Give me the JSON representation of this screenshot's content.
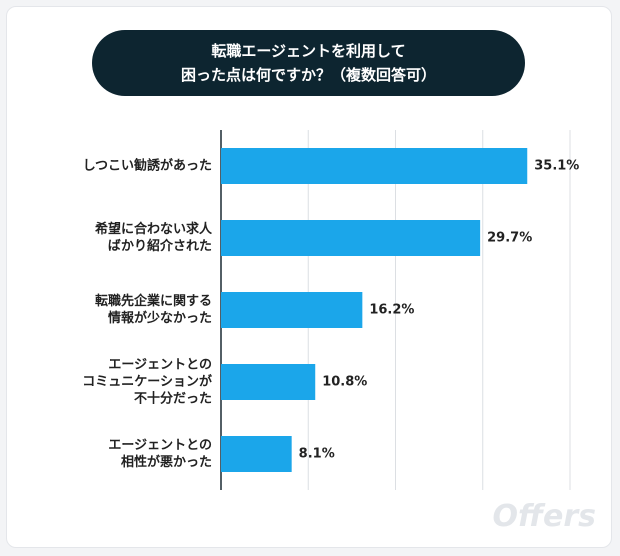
{
  "chart_data": {
    "type": "barh",
    "title": "転職エージェントを利用して\n困った点は何ですか？（複数回答可）",
    "categories": [
      "しつこい勧誘があった",
      "希望に合わない求人\nばかり紹介された",
      "転職先企業に関する\n情報が少なかった",
      "エージェントとの\nコミュニケーションが\n不十分だった",
      "エージェントとの\n相性が悪かった"
    ],
    "values": [
      35.1,
      29.7,
      16.2,
      10.8,
      8.1
    ],
    "value_labels": [
      "35.1%",
      "29.7%",
      "16.2%",
      "10.8%",
      "8.1%"
    ],
    "color": "#1ba6ea",
    "xlim": [
      0,
      40
    ],
    "xticks": [
      0,
      10,
      20,
      30,
      40
    ],
    "grid": true,
    "watermark": "Offers"
  }
}
